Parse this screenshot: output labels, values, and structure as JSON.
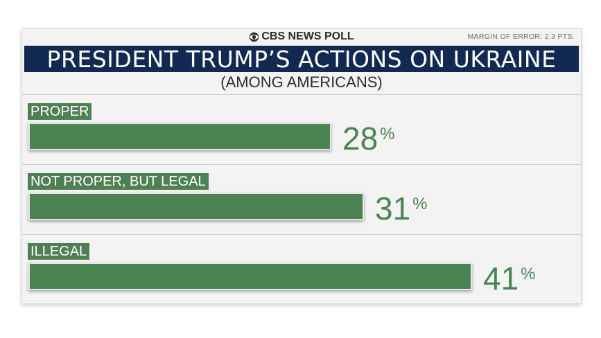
{
  "brand": "CBS NEWS POLL",
  "margin_of_error": "MARGIN OF ERROR: 2.3 PTS.",
  "colors": {
    "title_band": "#122a52",
    "bar": "#4b8452",
    "label_bg": "#4f8054",
    "value_text": "#4b8452"
  },
  "chart_data": {
    "type": "bar",
    "orientation": "horizontal",
    "title": "PRESIDENT TRUMP’S ACTIONS ON UKRAINE",
    "subtitle": "(AMONG AMERICANS)",
    "categories": [
      "PROPER",
      "NOT PROPER, BUT LEGAL",
      "ILLEGAL"
    ],
    "values": [
      28,
      31,
      41
    ],
    "unit": "%",
    "xlim": [
      0,
      50
    ],
    "grid": false,
    "legend": "none"
  }
}
